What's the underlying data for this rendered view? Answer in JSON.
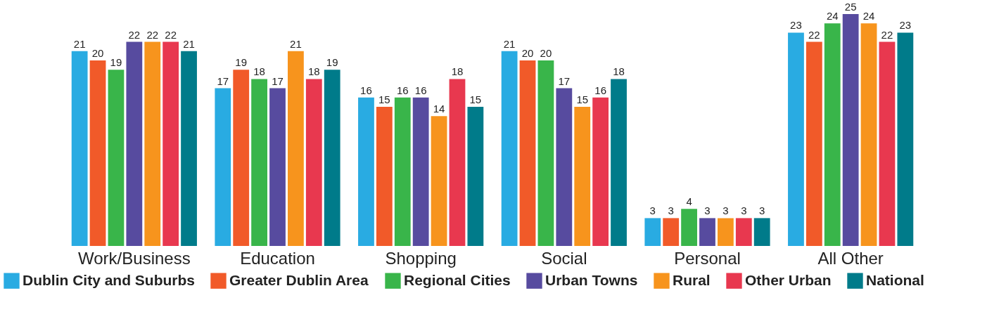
{
  "chart_data": {
    "type": "bar",
    "categories": [
      "Work/Business",
      "Education",
      "Shopping",
      "Social",
      "Personal",
      "All Other"
    ],
    "series": [
      {
        "name": "Dublin City and Suburbs",
        "color": "#29abe2",
        "values": [
          21,
          17,
          16,
          21,
          3,
          23
        ]
      },
      {
        "name": "Greater Dublin Area",
        "color": "#f15a29",
        "values": [
          20,
          19,
          15,
          20,
          3,
          22
        ]
      },
      {
        "name": "Regional Cities",
        "color": "#39b54a",
        "values": [
          19,
          18,
          16,
          20,
          4,
          24
        ]
      },
      {
        "name": "Urban Towns",
        "color": "#574b9f",
        "values": [
          22,
          17,
          16,
          17,
          3,
          25
        ]
      },
      {
        "name": "Rural",
        "color": "#f7941d",
        "values": [
          22,
          21,
          14,
          15,
          3,
          24
        ]
      },
      {
        "name": "Other Urban",
        "color": "#e8384f",
        "values": [
          22,
          18,
          18,
          16,
          3,
          22
        ]
      },
      {
        "name": "National",
        "color": "#007b8a",
        "values": [
          21,
          19,
          15,
          18,
          3,
          23
        ]
      }
    ],
    "data_labels": true,
    "legend": "bottom",
    "grid": false
  }
}
